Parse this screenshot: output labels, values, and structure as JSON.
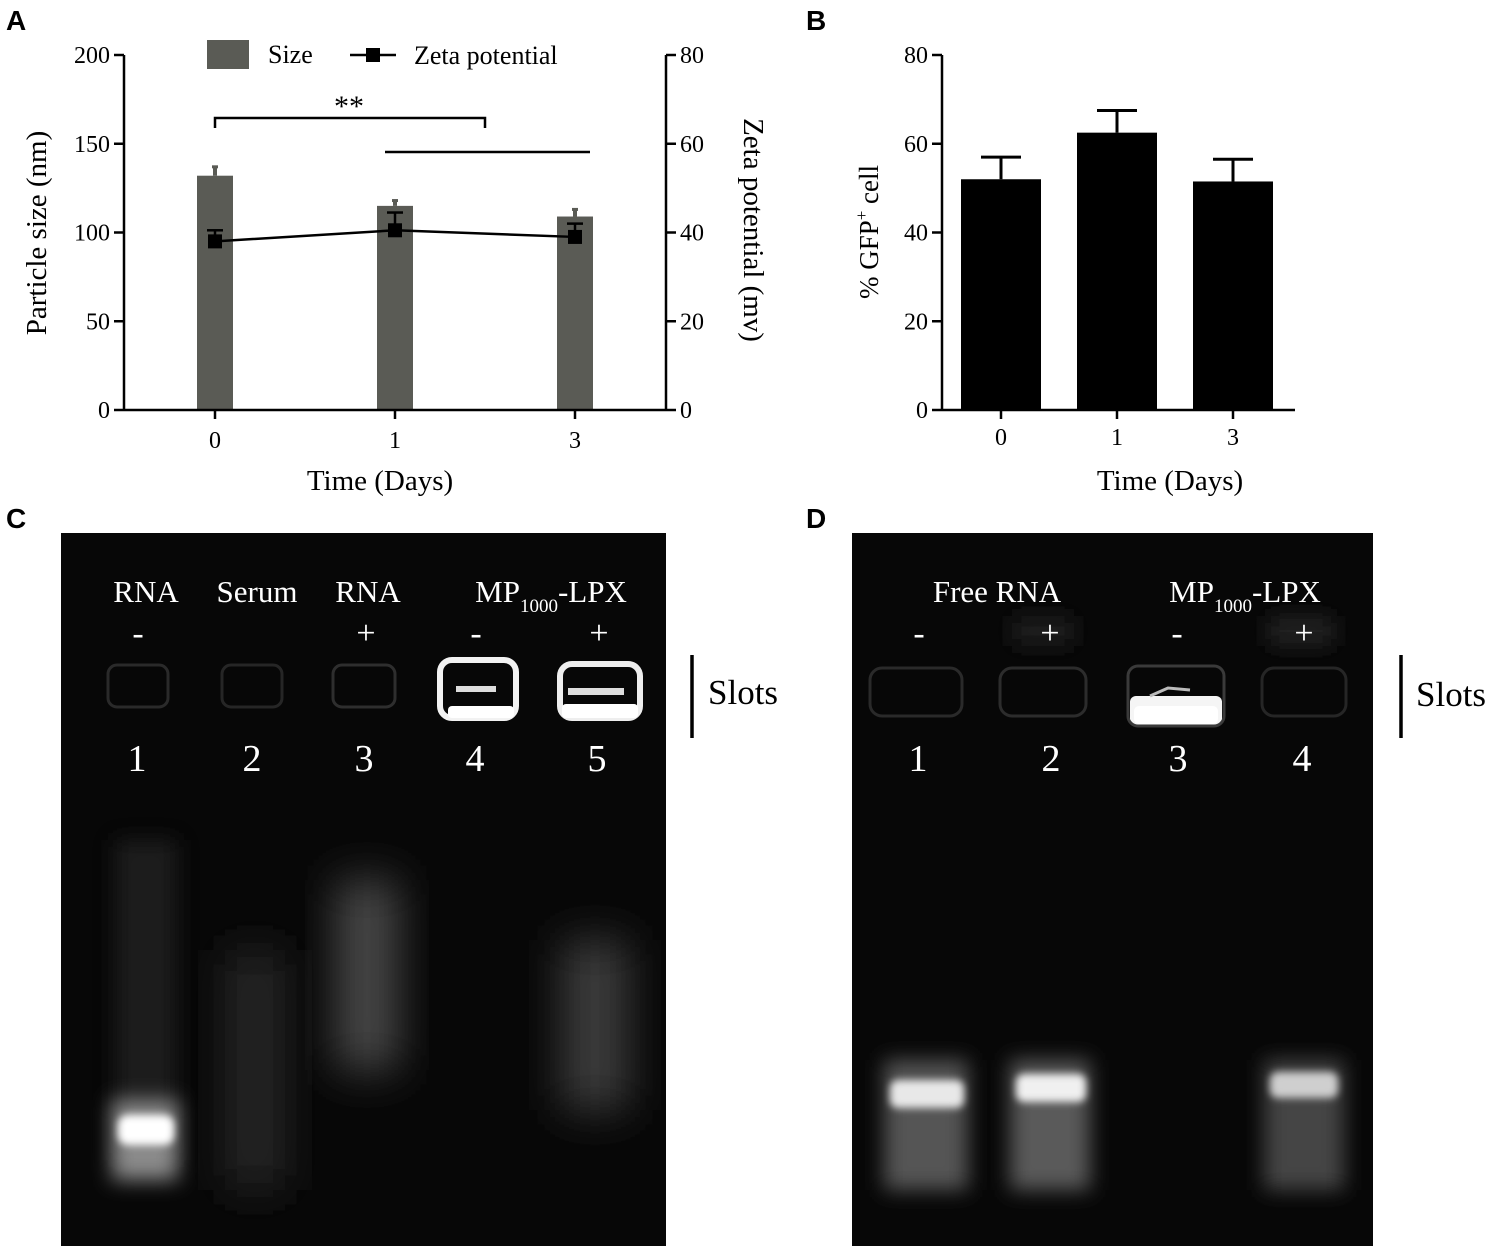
{
  "panels": {
    "a": {
      "letter": "A"
    },
    "b": {
      "letter": "B"
    },
    "c": {
      "letter": "C"
    },
    "d": {
      "letter": "D"
    }
  },
  "chart_data": [
    {
      "id": "A",
      "type": "bar",
      "categories": [
        "0",
        "1",
        "3"
      ],
      "xlabel": "Time (Days)",
      "ylabel": "Particle size (nm)",
      "ylabel_right": "Zeta potential (mv)",
      "ylim": [
        0,
        200
      ],
      "ylim_right": [
        0,
        80
      ],
      "yticks": [
        "0",
        "50",
        "100",
        "150",
        "200"
      ],
      "yticks_right": [
        "0",
        "20",
        "40",
        "60",
        "80"
      ],
      "legend_position": "top-center",
      "significance": "**",
      "colors": {
        "bar": "#5a5b55",
        "line": "#000000"
      },
      "series": [
        {
          "name": "Size",
          "type": "bar",
          "axis": "left",
          "values": [
            132,
            115,
            109
          ],
          "errors": [
            5,
            3,
            4
          ]
        },
        {
          "name": "Zeta potential",
          "type": "line",
          "axis": "right",
          "values": [
            38,
            40.5,
            39
          ],
          "errors": [
            2.5,
            4,
            3
          ]
        }
      ]
    },
    {
      "id": "B",
      "type": "bar",
      "categories": [
        "0",
        "1",
        "3"
      ],
      "xlabel": "Time (Days)",
      "ylabel_parts": [
        "% GFP",
        "+",
        " cell"
      ],
      "ylim": [
        0,
        80
      ],
      "yticks": [
        "0",
        "20",
        "40",
        "60",
        "80"
      ],
      "colors": {
        "bar": "#000000"
      },
      "series": [
        {
          "values": [
            52,
            62.5,
            51.5
          ],
          "errors": [
            5,
            5,
            5
          ]
        }
      ]
    }
  ],
  "gel_c": {
    "headers": [
      {
        "text": "RNA"
      },
      {
        "text": "Serum"
      },
      {
        "text": "RNA"
      },
      {
        "main": "MP",
        "sub": "1000",
        "rest": "-LPX"
      }
    ],
    "signs": [
      "-",
      "+",
      "-",
      "+"
    ],
    "lanes": [
      "1",
      "2",
      "3",
      "4",
      "5"
    ],
    "slots_label": "Slots"
  },
  "gel_d": {
    "headers": [
      {
        "text": "Free RNA"
      },
      {
        "main": "MP",
        "sub": "1000",
        "rest": "-LPX"
      }
    ],
    "signs": [
      "-",
      "+",
      "-",
      "+"
    ],
    "lanes": [
      "1",
      "2",
      "3",
      "4"
    ],
    "slots_label": "Slots"
  }
}
